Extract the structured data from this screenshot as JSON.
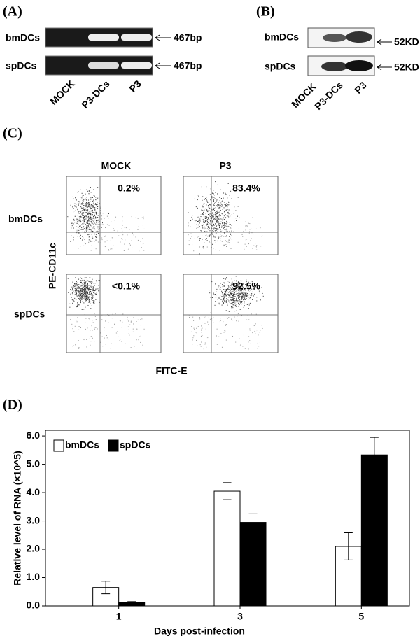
{
  "panel_a": {
    "label": "(A)",
    "rows": [
      "bmDCs",
      "spDCs"
    ],
    "band_labels": [
      "467bp",
      "467bp"
    ],
    "lanes": [
      "MOCK",
      "P3-DCs",
      "P3"
    ]
  },
  "panel_b": {
    "label": "(B)",
    "rows": [
      "bmDCs",
      "spDCs"
    ],
    "band_labels": [
      "52KD",
      "52KD"
    ],
    "lanes": [
      "MOCK",
      "P3-DCs",
      "P3"
    ]
  },
  "panel_c": {
    "label": "(C)",
    "columns": [
      "MOCK",
      "P3"
    ],
    "rows": [
      "bmDCs",
      "spDCs"
    ],
    "percentages": [
      [
        "0.2%",
        "83.4%"
      ],
      [
        "<0.1%",
        "92.5%"
      ]
    ],
    "y_label": "PE-CD11c",
    "x_label": "FITC-E"
  },
  "chart_data": {
    "type": "bar",
    "panel_label": "(D)",
    "categories": [
      "1",
      "3",
      "5"
    ],
    "series": [
      {
        "name": "bmDCs",
        "color": "#ffffff",
        "values": [
          0.65,
          4.05,
          2.1
        ],
        "errors": [
          0.22,
          0.3,
          0.48
        ]
      },
      {
        "name": "spDCs",
        "color": "#000000",
        "values": [
          0.12,
          2.95,
          5.33
        ],
        "errors": [
          0.03,
          0.3,
          0.62
        ]
      }
    ],
    "ylim": [
      0,
      6.2
    ],
    "yticks": [
      {
        "value": 0,
        "label": "0.0"
      },
      {
        "value": 1,
        "label": "1.0"
      },
      {
        "value": 2,
        "label": "2.0"
      },
      {
        "value": 3,
        "label": "3.0"
      },
      {
        "value": 4,
        "label": "4.0"
      },
      {
        "value": 5,
        "label": "5.0"
      },
      {
        "value": 6,
        "label": "6.0"
      }
    ],
    "ylabel": "Relative level of RNA (×10^5)",
    "xlabel": "Days post-infection",
    "legend": "top-left"
  }
}
